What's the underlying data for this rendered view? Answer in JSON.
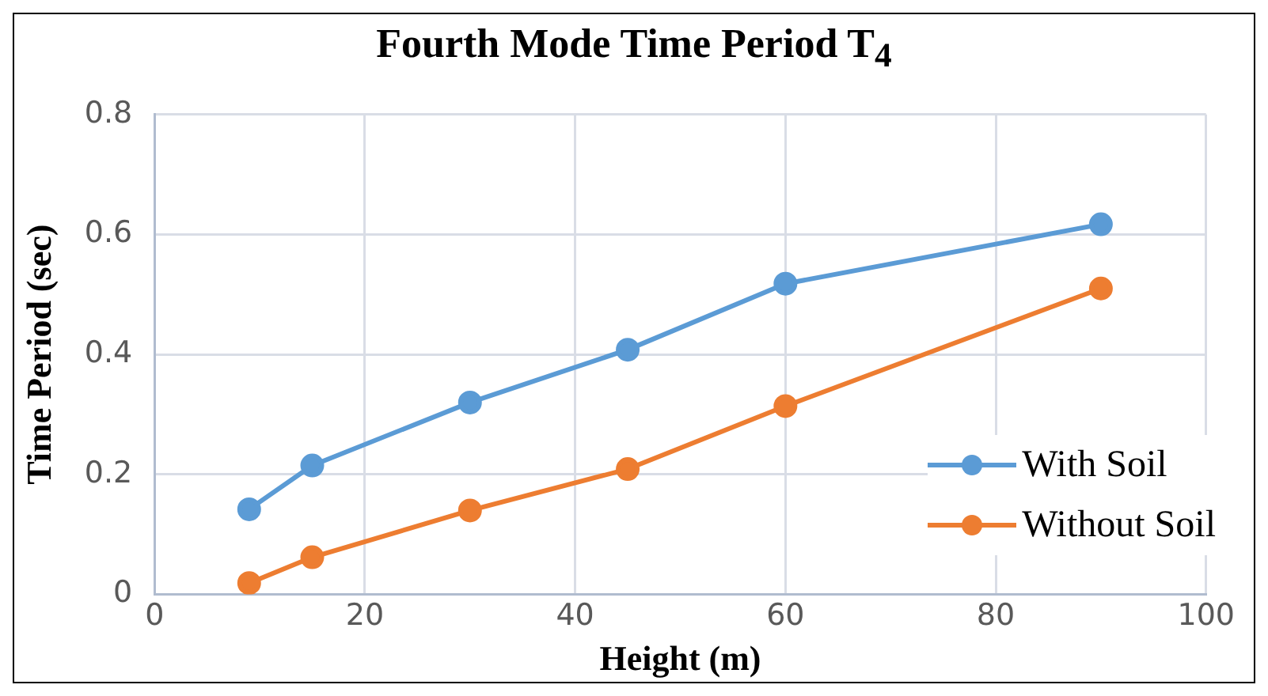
{
  "chart_data": {
    "type": "line",
    "title": "Fourth Mode Time Period T$_{4}$",
    "xlabel": "Height (m)",
    "ylabel": "Time Period (sec)",
    "xlim": [
      0,
      100
    ],
    "xticks": [
      0,
      20,
      40,
      60,
      80,
      100
    ],
    "ylim": [
      0,
      0.8
    ],
    "yticks": [
      0,
      0.2,
      0.4,
      0.6,
      0.8
    ],
    "grid": true,
    "legend": "bottom right",
    "marker": "circle",
    "x": [
      9,
      15,
      30,
      45,
      60,
      90
    ],
    "series": [
      {
        "name": "With Soil",
        "color": "#5b9bd5",
        "values": [
          0.142,
          0.215,
          0.32,
          0.408,
          0.518,
          0.617
        ]
      },
      {
        "name": "Without Soil",
        "color": "#ed7d31",
        "values": [
          0.019,
          0.062,
          0.14,
          0.209,
          0.314,
          0.51
        ]
      }
    ]
  }
}
